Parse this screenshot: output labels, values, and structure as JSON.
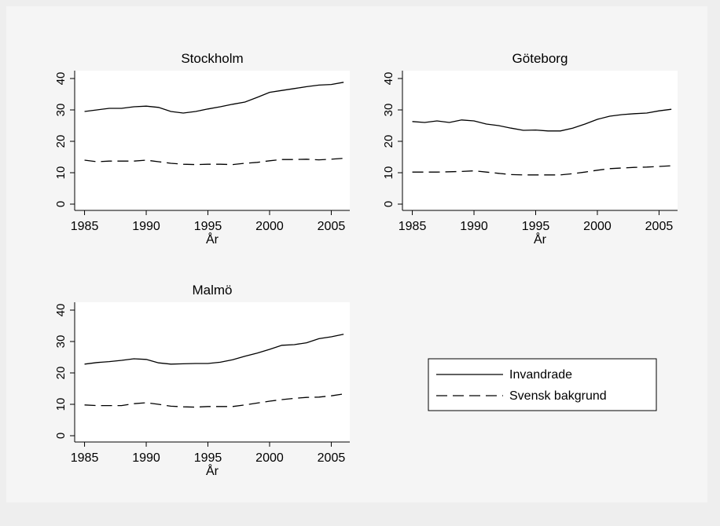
{
  "chart_data": [
    {
      "type": "line",
      "title": "Stockholm",
      "xlabel": "År",
      "x": [
        1985,
        1986,
        1987,
        1988,
        1989,
        1990,
        1991,
        1992,
        1993,
        1994,
        1995,
        1996,
        1997,
        1998,
        1999,
        2000,
        2001,
        2002,
        2003,
        2004,
        2005,
        2006
      ],
      "xlim": [
        1984.2,
        2006.5
      ],
      "xticks": [
        1985,
        1990,
        1995,
        2000,
        2005
      ],
      "ylim": [
        -2,
        42.5
      ],
      "yticks": [
        0,
        10,
        20,
        30,
        40
      ],
      "series": [
        {
          "color": "#000000",
          "dash": "solid",
          "values": [
            29.5,
            30,
            30.5,
            30.5,
            31,
            31.2,
            30.8,
            29.5,
            29,
            29.5,
            30.3,
            31,
            31.8,
            32.5,
            34,
            35.6,
            36.2,
            36.8,
            37.4,
            37.9,
            38.1,
            38.8
          ]
        },
        {
          "color": "#000000",
          "dash": "dashed",
          "values": [
            14,
            13.5,
            13.7,
            13.7,
            13.7,
            14,
            13.5,
            13,
            12.7,
            12.6,
            12.7,
            12.7,
            12.6,
            13,
            13.3,
            13.8,
            14.2,
            14.2,
            14.3,
            14.1,
            14.3,
            14.6
          ]
        }
      ]
    },
    {
      "type": "line",
      "title": "Göteborg",
      "xlabel": "År",
      "x": [
        1985,
        1986,
        1987,
        1988,
        1989,
        1990,
        1991,
        1992,
        1993,
        1994,
        1995,
        1996,
        1997,
        1998,
        1999,
        2000,
        2001,
        2002,
        2003,
        2004,
        2005,
        2006
      ],
      "xlim": [
        1984.2,
        2006.5
      ],
      "xticks": [
        1985,
        1990,
        1995,
        2000,
        2005
      ],
      "ylim": [
        -2,
        42.5
      ],
      "yticks": [
        0,
        10,
        20,
        30,
        40
      ],
      "series": [
        {
          "color": "#000000",
          "dash": "solid",
          "values": [
            26.3,
            26,
            26.5,
            26,
            26.8,
            26.5,
            25.5,
            25,
            24.2,
            23.5,
            23.6,
            23.3,
            23.3,
            24.2,
            25.5,
            27,
            28,
            28.5,
            28.8,
            29,
            29.7,
            30.2
          ]
        },
        {
          "color": "#000000",
          "dash": "dashed",
          "values": [
            10.2,
            10.2,
            10.2,
            10.3,
            10.4,
            10.6,
            10.2,
            9.8,
            9.4,
            9.3,
            9.3,
            9.3,
            9.3,
            9.7,
            10.2,
            10.8,
            11.3,
            11.5,
            11.7,
            11.8,
            12,
            12.2
          ]
        }
      ]
    },
    {
      "type": "line",
      "title": "Malmö",
      "xlabel": "År",
      "legend": "right",
      "x": [
        1985,
        1986,
        1987,
        1988,
        1989,
        1990,
        1991,
        1992,
        1993,
        1994,
        1995,
        1996,
        1997,
        1998,
        1999,
        2000,
        2001,
        2002,
        2003,
        2004,
        2005,
        2006
      ],
      "xlim": [
        1984.2,
        2006.5
      ],
      "xticks": [
        1985,
        1990,
        1995,
        2000,
        2005
      ],
      "ylim": [
        -2,
        42.5
      ],
      "yticks": [
        0,
        10,
        20,
        30,
        40
      ],
      "series": [
        {
          "name": "Invandrade",
          "color": "#000000",
          "dash": "solid",
          "values": [
            22.8,
            23.3,
            23.6,
            24,
            24.5,
            24.3,
            23.2,
            22.8,
            22.9,
            23,
            23,
            23.4,
            24.2,
            25.3,
            26.3,
            27.5,
            28.8,
            29,
            29.6,
            30.9,
            31.5,
            32.3
          ]
        },
        {
          "name": "Svensk bakgrund",
          "color": "#000000",
          "dash": "dashed",
          "values": [
            9.8,
            9.6,
            9.6,
            9.6,
            10.2,
            10.5,
            10,
            9.4,
            9.2,
            9.1,
            9.3,
            9.3,
            9.3,
            9.8,
            10.4,
            11,
            11.5,
            11.9,
            12.2,
            12.3,
            12.7,
            13.3
          ]
        }
      ]
    }
  ]
}
